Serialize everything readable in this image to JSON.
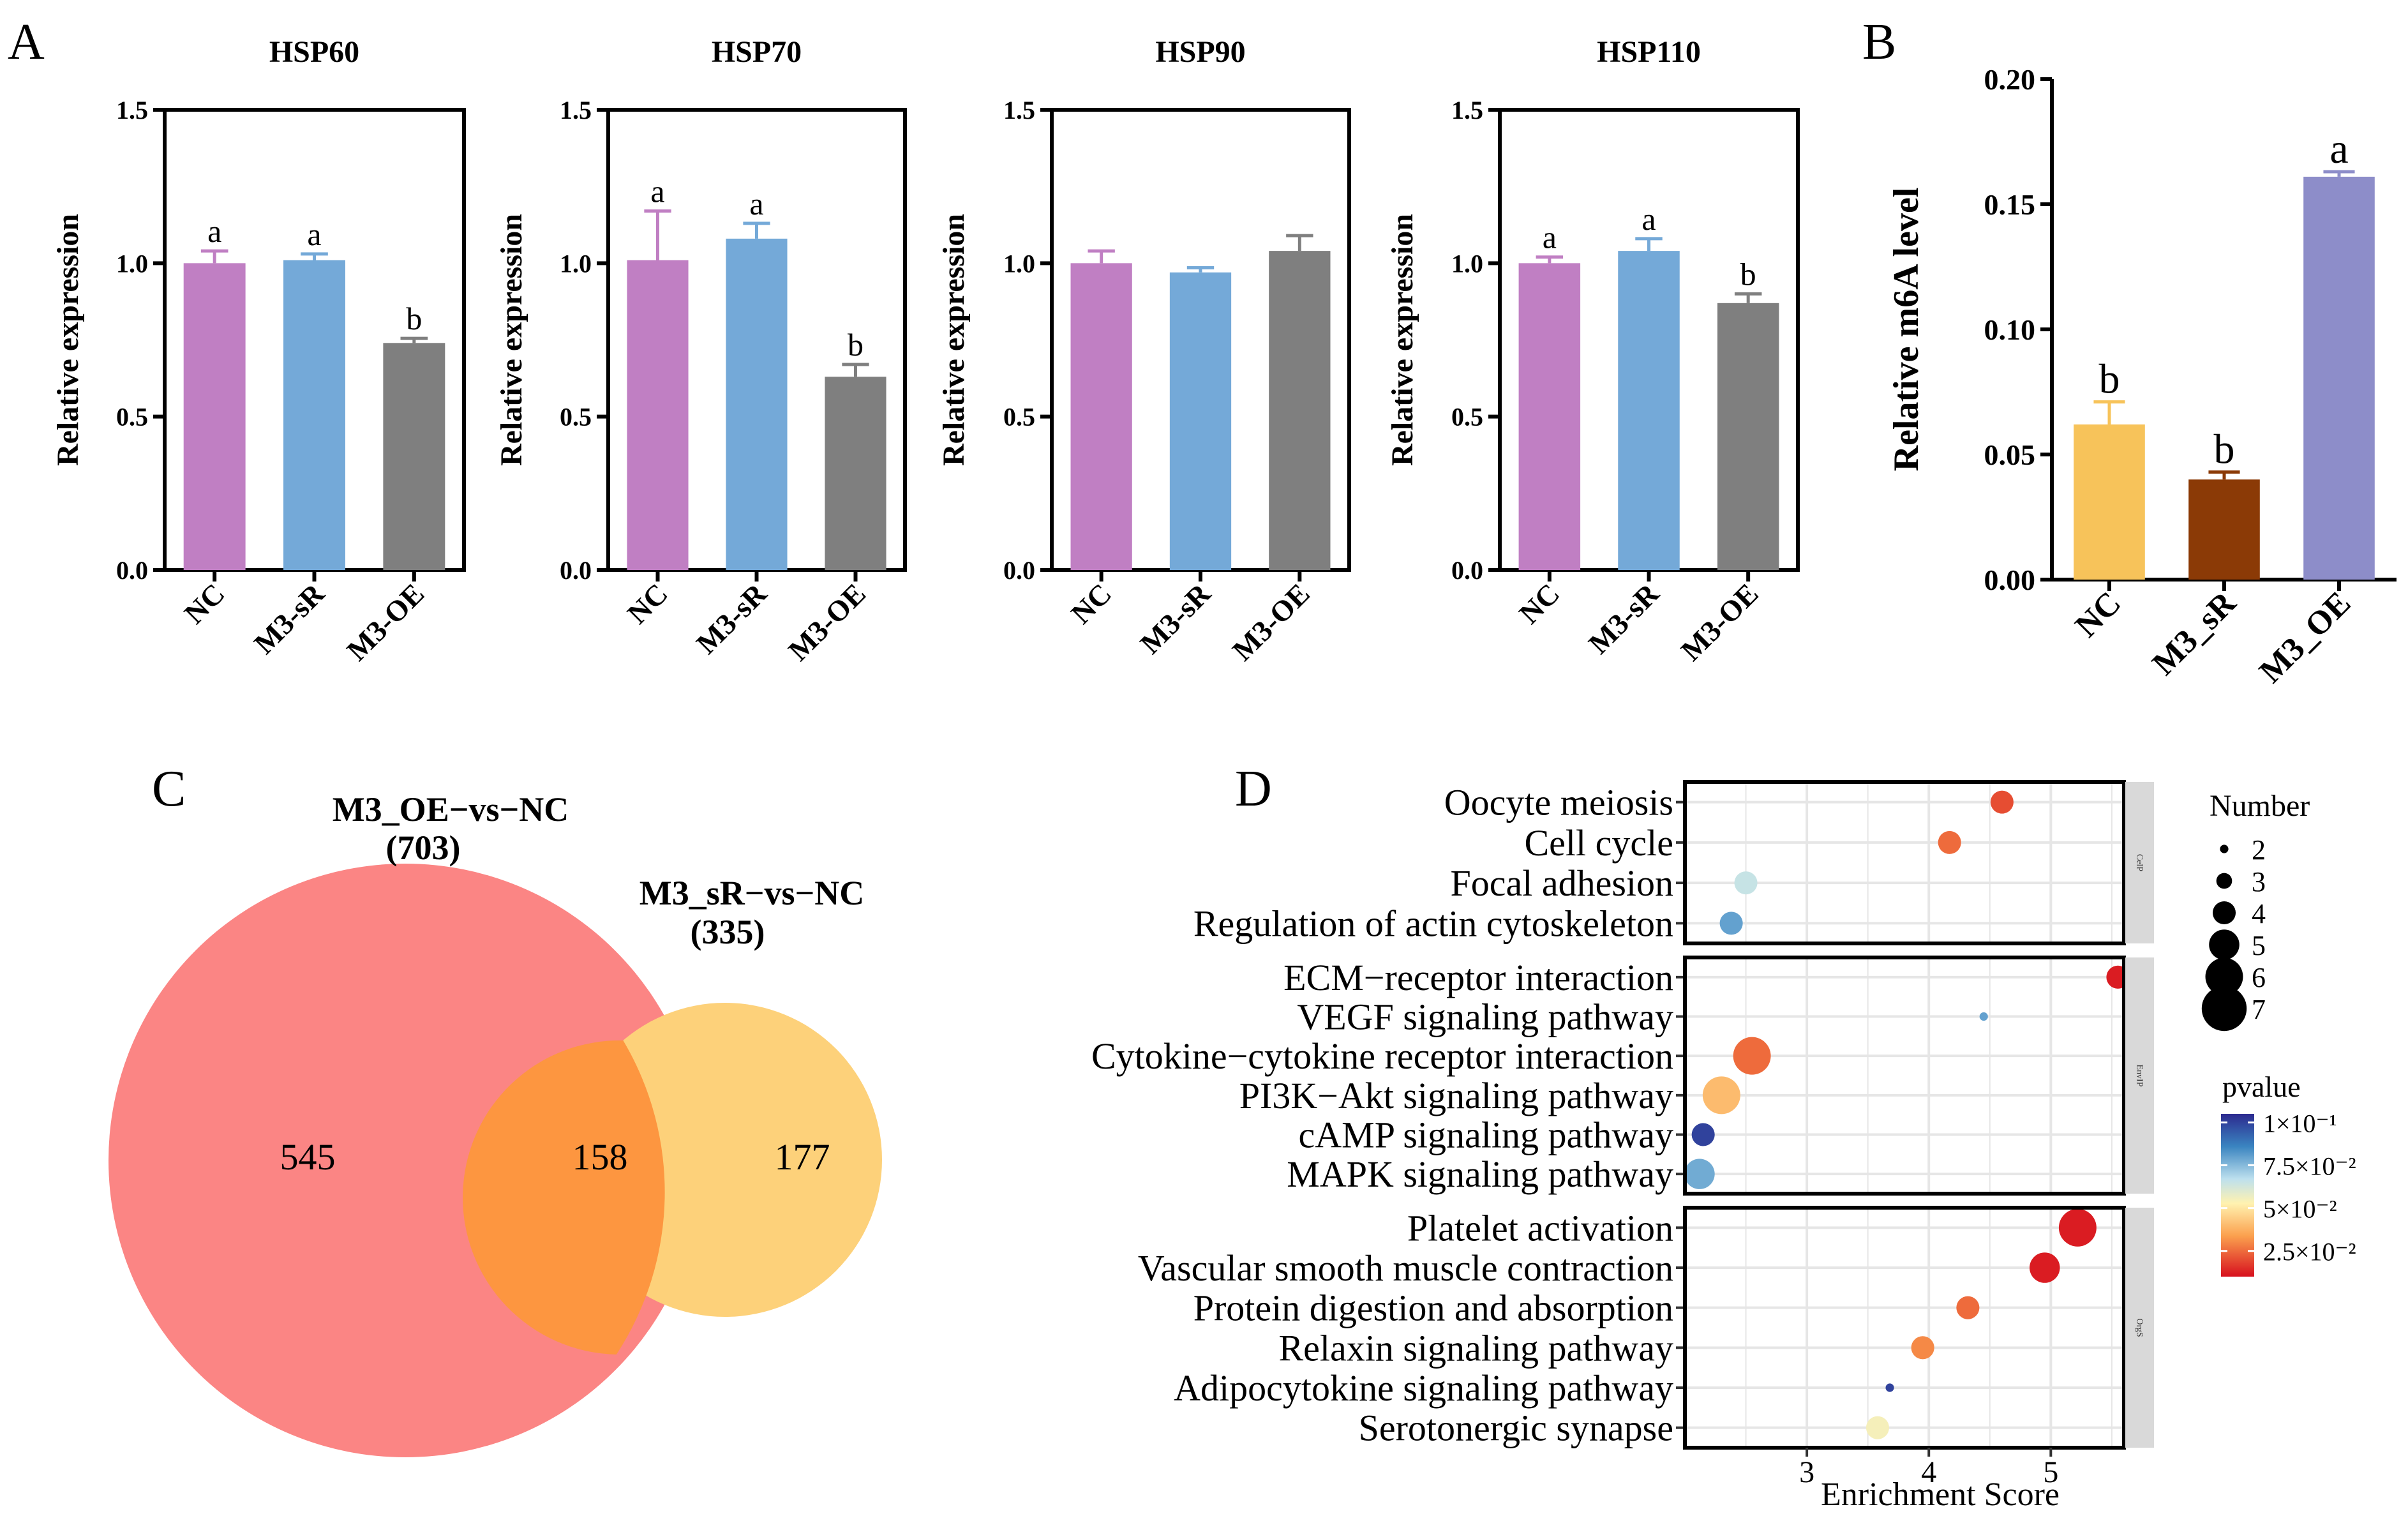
{
  "figure": {
    "panel_labels": {
      "A": "A",
      "B": "B",
      "C": "C",
      "D": "D"
    },
    "colors": {
      "nc_purple": "#c07fc3",
      "sr_blue": "#74a9d8",
      "oe_gray": "#7f7f7f",
      "b_nc": "#f7c35a",
      "b_sr": "#8b3a06",
      "b_oe": "#8d8dc9",
      "venn_left": "#fb8584",
      "venn_right": "#fdd17a",
      "venn_overlap": "#fd9640",
      "strip_bg": "#d9d9d9"
    }
  },
  "chart_data": [
    {
      "id": "hsp60",
      "panel": "A",
      "type": "bar",
      "title": "HSP60",
      "ylabel": "Relative expression",
      "xlabel": "",
      "ylim": [
        0,
        1.5
      ],
      "yticks": [
        "0.0",
        "0.5",
        "1.0",
        "1.5"
      ],
      "categories": [
        "NC",
        "M3-sR",
        "M3-OE"
      ],
      "values": [
        1.0,
        1.01,
        0.74
      ],
      "errors": [
        0.04,
        0.02,
        0.015
      ],
      "letters": [
        "a",
        "a",
        "b"
      ]
    },
    {
      "id": "hsp70",
      "panel": "A",
      "type": "bar",
      "title": "HSP70",
      "ylabel": "Relative expression",
      "xlabel": "",
      "ylim": [
        0,
        1.5
      ],
      "yticks": [
        "0.0",
        "0.5",
        "1.0",
        "1.5"
      ],
      "categories": [
        "NC",
        "M3-sR",
        "M3-OE"
      ],
      "values": [
        1.01,
        1.08,
        0.63
      ],
      "errors": [
        0.16,
        0.05,
        0.04
      ],
      "letters": [
        "a",
        "a",
        "b"
      ]
    },
    {
      "id": "hsp90",
      "panel": "A",
      "type": "bar",
      "title": "HSP90",
      "ylabel": "Relative expression",
      "xlabel": "",
      "ylim": [
        0,
        1.5
      ],
      "yticks": [
        "0.0",
        "0.5",
        "1.0",
        "1.5"
      ],
      "categories": [
        "NC",
        "M3-sR",
        "M3-OE"
      ],
      "values": [
        1.0,
        0.97,
        1.04
      ],
      "errors": [
        0.04,
        0.015,
        0.05
      ],
      "letters": [
        "",
        "",
        ""
      ]
    },
    {
      "id": "hsp110",
      "panel": "A",
      "type": "bar",
      "title": "HSP110",
      "ylabel": "Relative expression",
      "xlabel": "",
      "ylim": [
        0,
        1.5
      ],
      "yticks": [
        "0.0",
        "0.5",
        "1.0",
        "1.5"
      ],
      "categories": [
        "NC",
        "M3-sR",
        "M3-OE"
      ],
      "values": [
        1.0,
        1.04,
        0.87
      ],
      "errors": [
        0.02,
        0.04,
        0.03
      ],
      "letters": [
        "a",
        "a",
        "b"
      ]
    },
    {
      "id": "m6a",
      "panel": "B",
      "type": "bar",
      "title": "",
      "ylabel": "Relative m6A level",
      "xlabel": "",
      "ylim": [
        0,
        0.2
      ],
      "yticks": [
        "0.00",
        "0.05",
        "0.10",
        "0.15",
        "0.20"
      ],
      "categories": [
        "NC",
        "M3_sR",
        "M3_OE"
      ],
      "values": [
        0.062,
        0.04,
        0.161
      ],
      "errors": [
        0.009,
        0.003,
        0.002
      ],
      "letters": [
        "b",
        "b",
        "a"
      ]
    },
    {
      "id": "venn",
      "panel": "C",
      "type": "venn",
      "sets": [
        {
          "name": "M3_OE−vs−NC",
          "total": "(703)",
          "only": "545"
        },
        {
          "name": "M3_sR−vs−NC",
          "total": "(335)",
          "only": "177"
        }
      ],
      "overlap": "158"
    },
    {
      "id": "kegg",
      "panel": "D",
      "type": "scatter",
      "xlabel": "Enrichment Score",
      "xlim": [
        2.0,
        5.6
      ],
      "xticks": [
        "3",
        "4",
        "5"
      ],
      "size_legend": {
        "title": "Number",
        "levels": [
          "2",
          "3",
          "4",
          "5",
          "6",
          "7"
        ]
      },
      "color_legend": {
        "title": "pvalue",
        "ticks": [
          "1×10⁻¹",
          "7.5×10⁻²",
          "5×10⁻²",
          "2.5×10⁻²"
        ],
        "values": [
          0.1,
          0.075,
          0.05,
          0.025
        ],
        "range": [
          0.01,
          0.105
        ]
      },
      "groups": [
        {
          "strip": "CelP",
          "terms": [
            {
              "name": "Oocyte meiosis",
              "score": 4.6,
              "count": 4,
              "pvalue": 0.02
            },
            {
              "name": "Cell cycle",
              "score": 4.17,
              "count": 4,
              "pvalue": 0.025
            },
            {
              "name": "Focal adhesion",
              "score": 2.5,
              "count": 4,
              "pvalue": 0.065
            },
            {
              "name": "Regulation of actin cytoskeleton",
              "score": 2.38,
              "count": 4,
              "pvalue": 0.08
            }
          ]
        },
        {
          "strip": "EnvIP",
          "terms": [
            {
              "name": "ECM−receptor interaction",
              "score": 5.55,
              "count": 4,
              "pvalue": 0.012
            },
            {
              "name": "VEGF signaling pathway",
              "score": 4.45,
              "count": 2,
              "pvalue": 0.08
            },
            {
              "name": "Cytokine−cytokine receptor interaction",
              "score": 2.55,
              "count": 6,
              "pvalue": 0.025
            },
            {
              "name": "PI3K−Akt signaling pathway",
              "score": 2.3,
              "count": 6,
              "pvalue": 0.04
            },
            {
              "name": "cAMP signaling pathway",
              "score": 2.15,
              "count": 4,
              "pvalue": 0.1
            },
            {
              "name": "MAPK signaling pathway",
              "score": 2.12,
              "count": 5,
              "pvalue": 0.078
            }
          ]
        },
        {
          "strip": "OrgS",
          "terms": [
            {
              "name": "Platelet activation",
              "score": 5.22,
              "count": 6,
              "pvalue": 0.012
            },
            {
              "name": "Vascular smooth muscle contraction",
              "score": 4.95,
              "count": 5,
              "pvalue": 0.012
            },
            {
              "name": "Protein digestion and absorption",
              "score": 4.32,
              "count": 4,
              "pvalue": 0.025
            },
            {
              "name": "Relaxin signaling pathway",
              "score": 3.95,
              "count": 4,
              "pvalue": 0.03
            },
            {
              "name": "Adipocytokine signaling pathway",
              "score": 3.68,
              "count": 2,
              "pvalue": 0.1
            },
            {
              "name": "Serotonergic synapse",
              "score": 3.58,
              "count": 4,
              "pvalue": 0.055
            }
          ]
        }
      ]
    }
  ]
}
